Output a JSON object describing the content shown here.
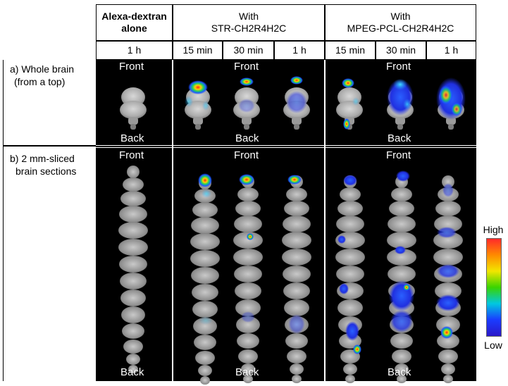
{
  "header": {
    "group1": "Alexa-dextran\nalone",
    "group2_line1": "With",
    "group2_line2": "STR-CH2R4H2C",
    "group3_line1": "With",
    "group3_line2": "MPEG-PCL-CH2R4H2C",
    "times": [
      "1 h",
      "15 min",
      "30 min",
      "1 h",
      "15 min",
      "30 min",
      "1 h"
    ]
  },
  "rows": {
    "a_label_line1": "a) Whole brain",
    "a_label_line2": "(from a top)",
    "b_label_line1": "b) 2 mm-sliced",
    "b_label_line2": "brain sections"
  },
  "image_labels": {
    "front": "Front",
    "back": "Back"
  },
  "legend": {
    "high": "High",
    "low": "Low",
    "colors": [
      "#ff2a2a",
      "#ff8a00",
      "#f2e600",
      "#39d400",
      "#00c8e0",
      "#1a3cff",
      "#2a18c8"
    ]
  }
}
